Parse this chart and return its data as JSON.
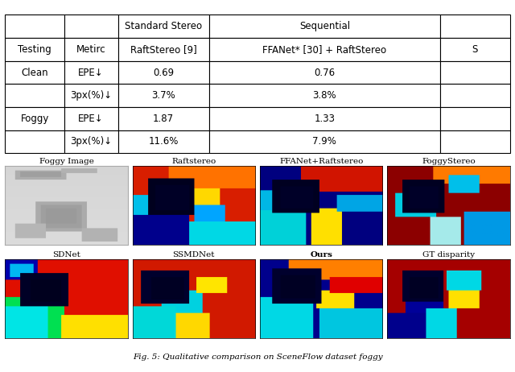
{
  "table_rows": [
    [
      "",
      "",
      "Standard Stereo",
      "Sequential",
      ""
    ],
    [
      "Testing",
      "Metirc",
      "RaftStereo [9]",
      "FFANet* [30] + RaftStereo",
      "S"
    ],
    [
      "Clean",
      "EPE↓",
      "0.69",
      "0.76",
      ""
    ],
    [
      "",
      "3px(%)↓",
      "3.7%",
      "3.8%",
      ""
    ],
    [
      "Foggy",
      "EPE↓",
      "1.87",
      "1.33",
      ""
    ],
    [
      "",
      "3px(%)↓",
      "11.6%",
      "7.9%",
      ""
    ]
  ],
  "image_labels_row1": [
    "Foggy Image",
    "Raftstereo",
    "FFANet+Raftstereo",
    "FoggyStereo"
  ],
  "image_labels_row2": [
    "SDNet",
    "SSMDNet",
    "Ours",
    "GT disparity"
  ],
  "background_color": "#ffffff",
  "caption": "Fig. 5: Qualitative comparison on SceneFlow dataset foggy"
}
